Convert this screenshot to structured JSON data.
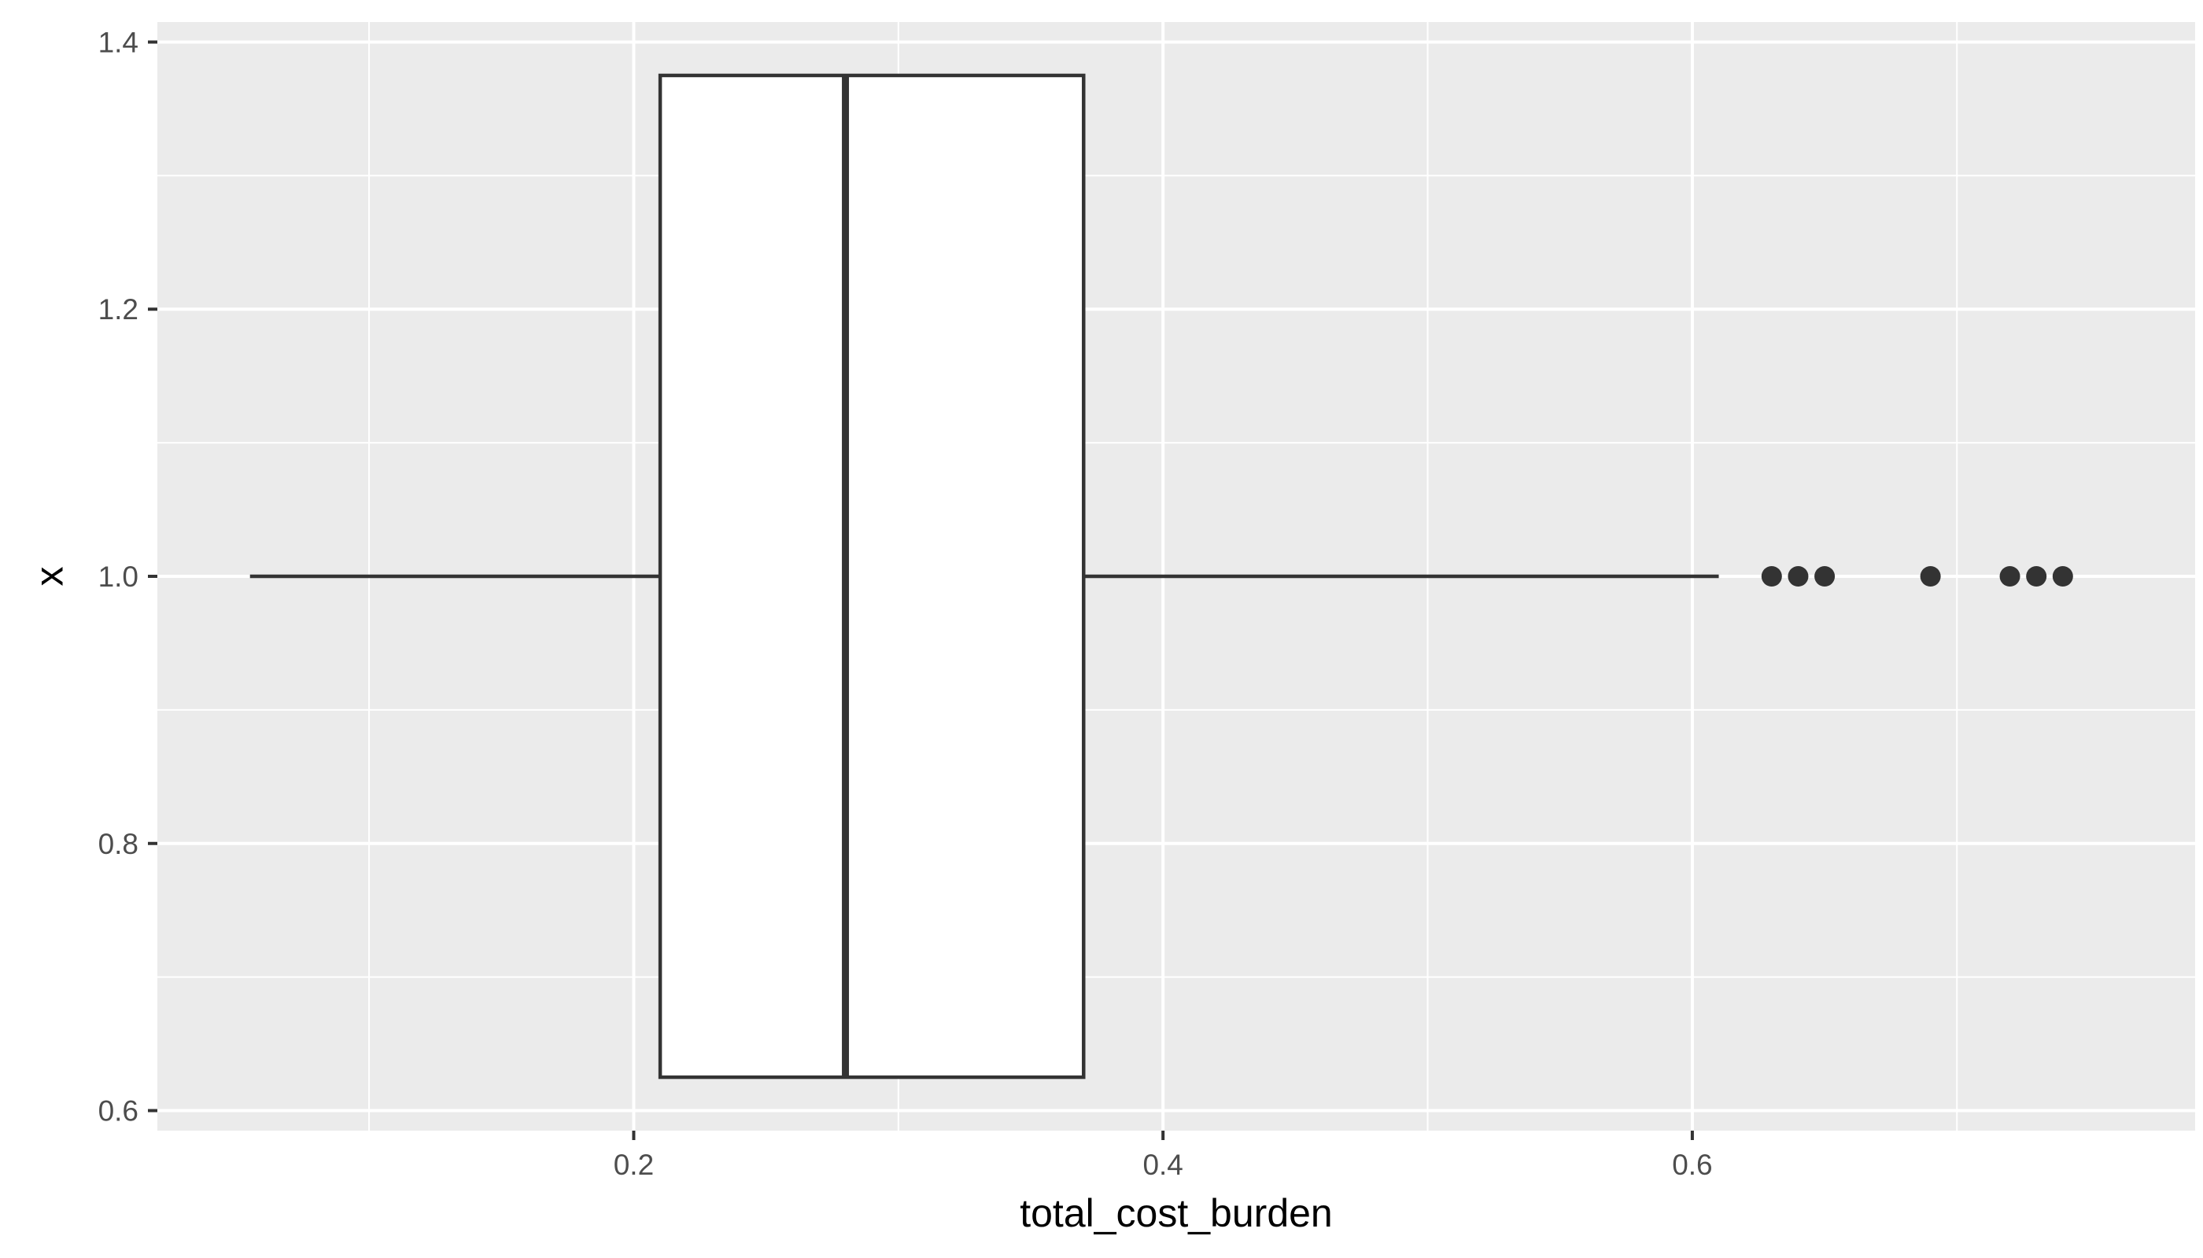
{
  "chart_data": {
    "type": "boxplot",
    "orientation": "horizontal",
    "title": "",
    "xlabel": "total_cost_burden",
    "ylabel": "x",
    "xlim": [
      0.02,
      0.79
    ],
    "ylim": [
      0.585,
      1.415
    ],
    "x_ticks": [
      0.2,
      0.4,
      0.6
    ],
    "x_tick_labels": [
      "0.2",
      "0.4",
      "0.6"
    ],
    "x_minor_ticks": [
      0.1,
      0.3,
      0.5,
      0.7
    ],
    "y_ticks": [
      0.6,
      0.8,
      1.0,
      1.2,
      1.4
    ],
    "y_tick_labels": [
      "0.6",
      "0.8",
      "1.0",
      "1.2",
      "1.4"
    ],
    "y_minor_ticks": [
      0.7,
      0.9,
      1.1,
      1.3
    ],
    "grid": true,
    "colors": {
      "panel_background": "#ebebeb",
      "grid_line": "#ffffff",
      "box_fill": "#ffffff",
      "box_stroke": "#333333",
      "outlier": "#333333",
      "tick_text": "#4d4d4d",
      "title_text": "#000000"
    },
    "box": {
      "y_center": 1.0,
      "y_low": 0.625,
      "y_high": 1.375,
      "whisker_low": 0.055,
      "q1": 0.21,
      "median": 0.28,
      "q3": 0.37,
      "whisker_high": 0.61
    },
    "outliers": [
      0.63,
      0.64,
      0.65,
      0.69,
      0.72,
      0.73,
      0.74
    ]
  }
}
